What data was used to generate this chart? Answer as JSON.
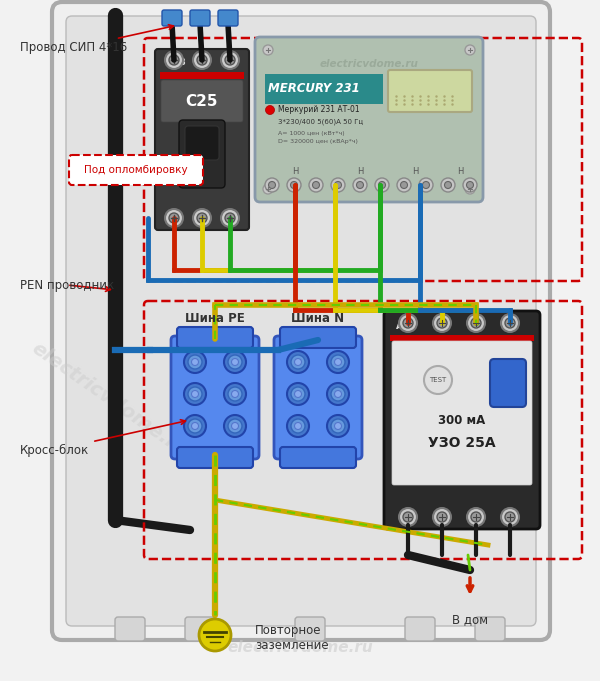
{
  "bg_color": "#f2f2f2",
  "panel_color": "#e8e8e8",
  "panel_border": "#aaaaaa",
  "label_color": "#333333",
  "labels": {
    "провод": "Провод СИП 4*16",
    "opломб": "Под опломбировку",
    "pen": "PEN проводник",
    "kross": "Кросс-блок",
    "shina_pe": "Шина РЕ",
    "shina_n": "Шина N",
    "zazemlenie": "Повторное\nзаземление",
    "v_dom": "В дом"
  },
  "figsize": [
    6.0,
    6.81
  ],
  "dpi": 100
}
